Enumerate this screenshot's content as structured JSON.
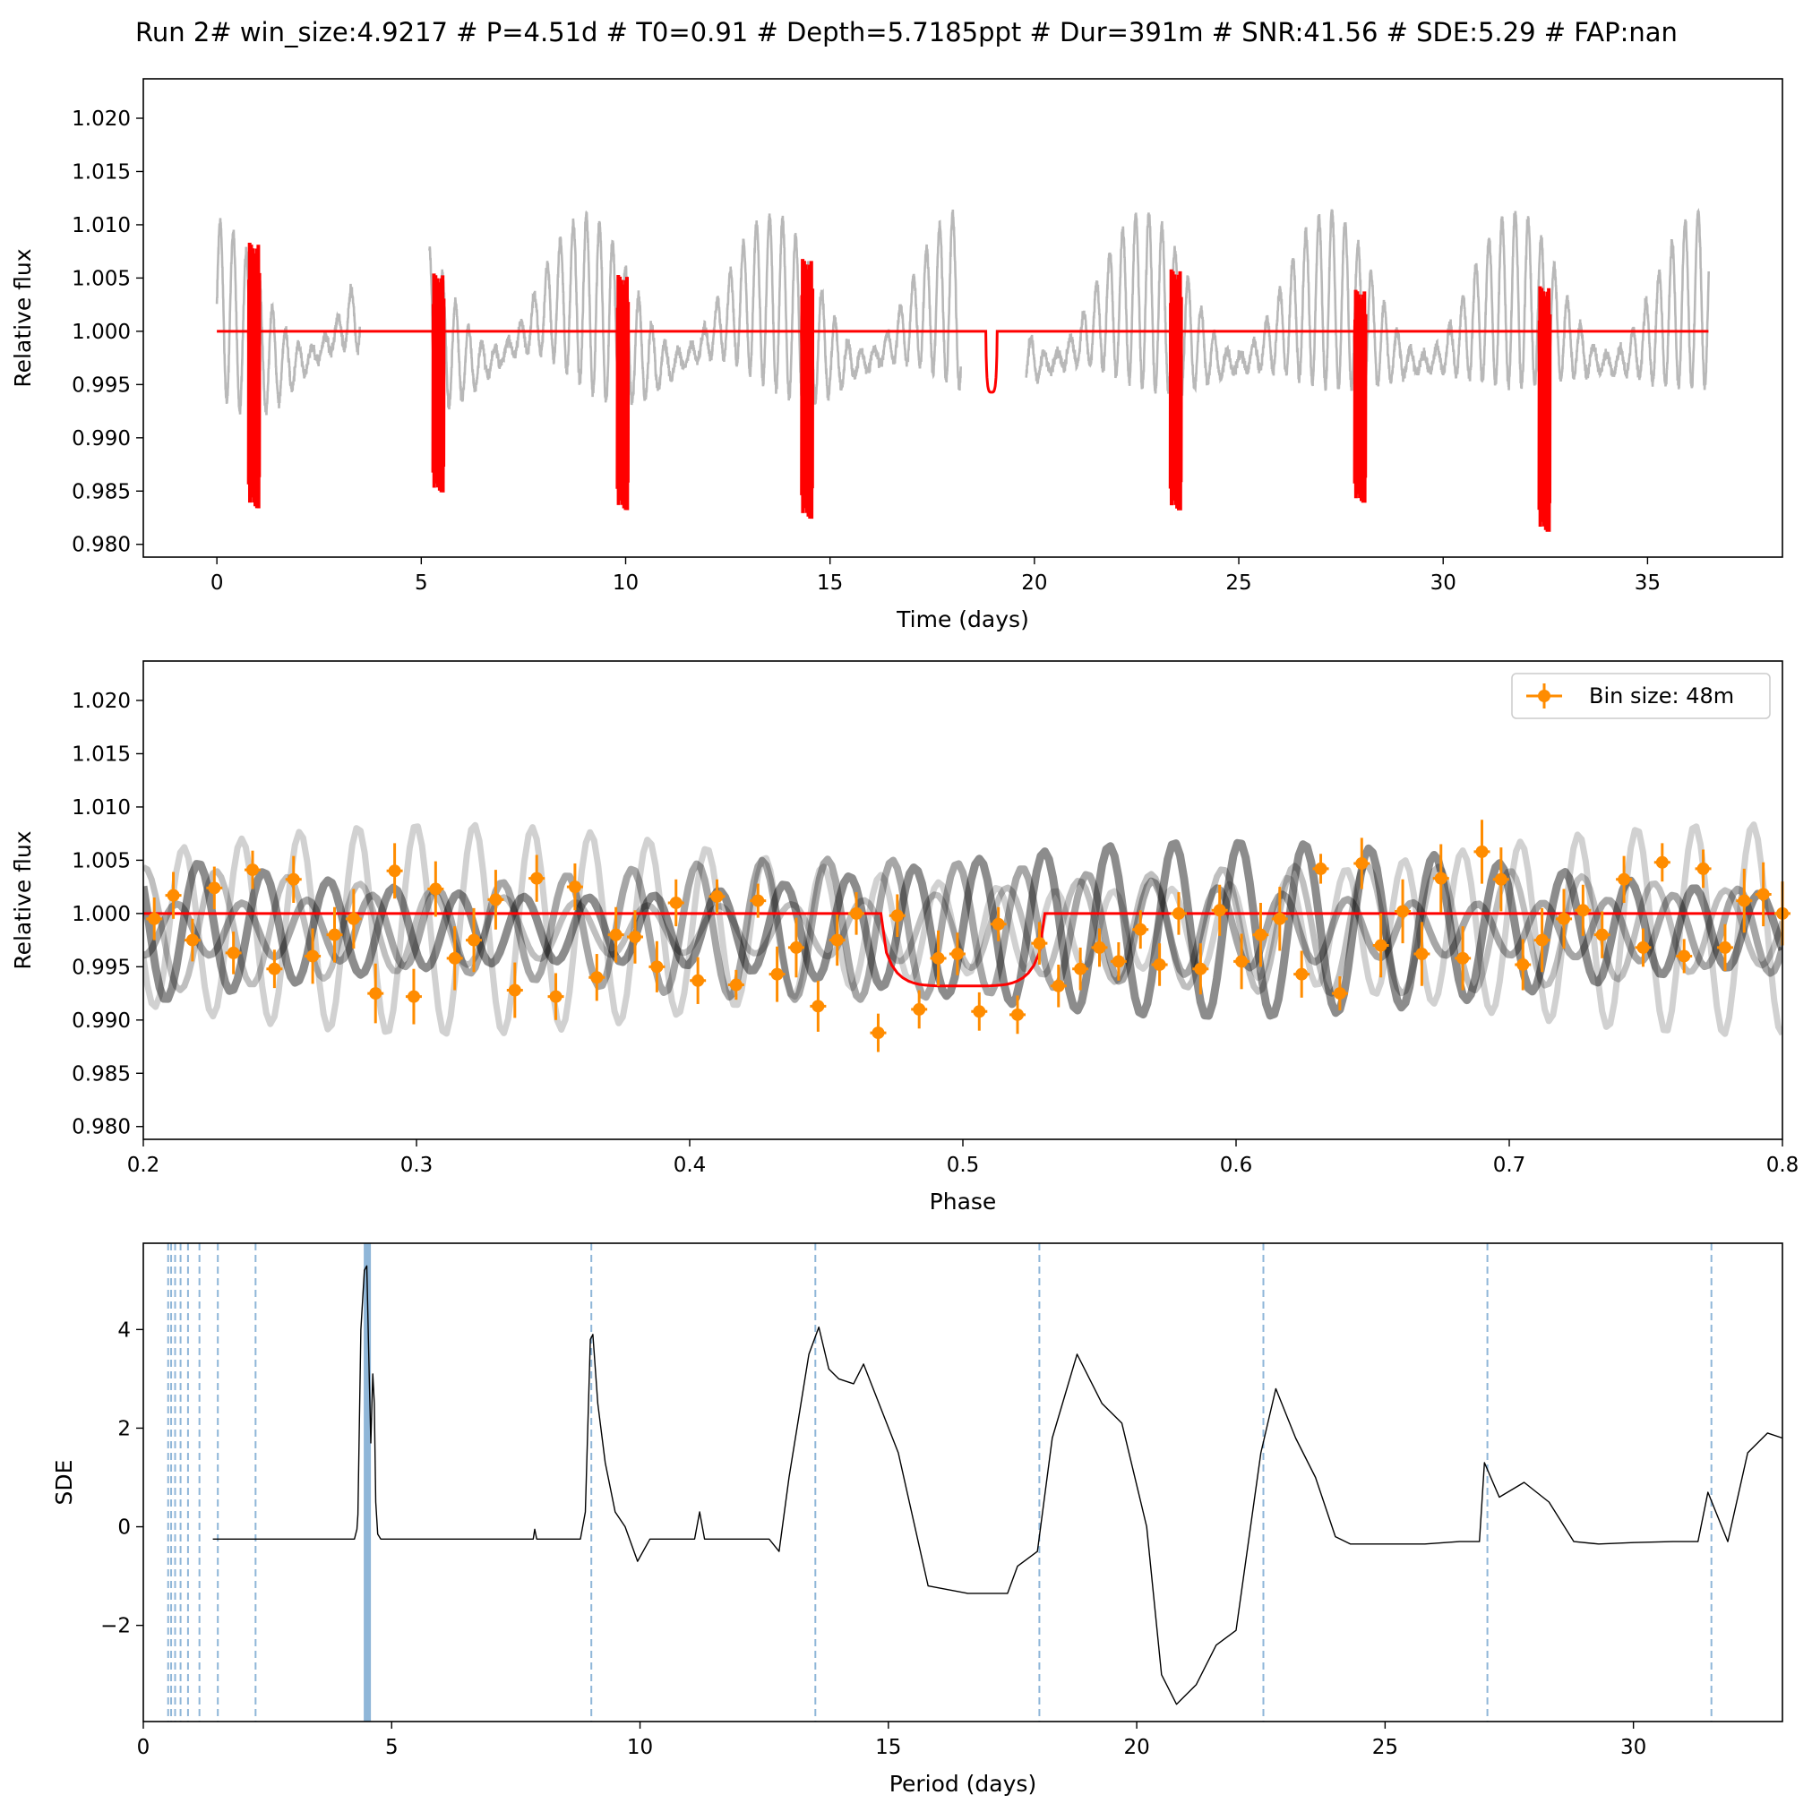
{
  "figure": {
    "title": "Run 2# win_size:4.9217 # P=4.51d # T0=0.91 # Depth=5.7185ppt # Dur=391m # SNR:41.56 # SDE:5.29 # FAP:nan"
  },
  "colors": {
    "data_points": "#000000",
    "model": "#ff0000",
    "binned": "#ff8c00",
    "period_line": "#8fb6d8",
    "periodogram": "#000000"
  },
  "chart_data": [
    {
      "type": "scatter",
      "panel": "lightcurve",
      "xlabel": "Time (days)",
      "ylabel": "Relative flux",
      "xlim": [
        -1.8,
        38.3
      ],
      "ylim": [
        0.9788,
        1.0237
      ],
      "xticks": [
        0,
        5,
        10,
        15,
        20,
        25,
        30,
        35
      ],
      "xtick_labels": [
        "0",
        "5",
        "10",
        "15",
        "20",
        "25",
        "30",
        "35"
      ],
      "yticks": [
        0.98,
        0.985,
        0.99,
        0.995,
        1.0,
        1.005,
        1.01,
        1.015,
        1.02
      ],
      "ytick_labels": [
        "0.980",
        "0.985",
        "0.990",
        "0.995",
        "1.000",
        "1.005",
        "1.010",
        "1.015",
        "1.020"
      ],
      "segments": [
        [
          0,
          3.5
        ],
        [
          5.2,
          18.2
        ],
        [
          19.8,
          36.5
        ]
      ],
      "variability": {
        "period_days": 0.32,
        "amplitude": 0.0082,
        "envelope_period_days": 4.5,
        "mean_flux": 1.0
      },
      "series": [
        {
          "name": "model",
          "x_range": [
            0,
            36.5
          ],
          "baseline": 1.0,
          "period": 4.51,
          "t0": 0.91,
          "depth_ppt": 5.7185,
          "duration_min": 391
        },
        {
          "name": "in-transit points",
          "x": [
            0.91,
            5.42,
            9.93,
            14.44,
            23.46,
            27.97,
            32.48
          ],
          "min_flux": [
            0.9845,
            0.9858,
            0.9842,
            0.9835,
            0.9842,
            0.9848,
            0.9822
          ],
          "max_flux": [
            1.0072,
            1.0045,
            1.0043,
            1.0057,
            1.0048,
            1.003,
            1.0032
          ]
        }
      ]
    },
    {
      "type": "scatter",
      "panel": "phase",
      "xlabel": "Phase",
      "ylabel": "Relative flux",
      "xlim": [
        0.2,
        0.8
      ],
      "ylim": [
        0.9788,
        1.0237
      ],
      "xticks": [
        0.2,
        0.3,
        0.4,
        0.5,
        0.6,
        0.7,
        0.8
      ],
      "xtick_labels": [
        "0.2",
        "0.3",
        "0.4",
        "0.5",
        "0.6",
        "0.7",
        "0.8"
      ],
      "yticks": [
        0.98,
        0.985,
        0.99,
        0.995,
        1.0,
        1.005,
        1.01,
        1.015,
        1.02
      ],
      "ytick_labels": [
        "0.980",
        "0.985",
        "0.990",
        "0.995",
        "1.000",
        "1.005",
        "1.010",
        "1.015",
        "1.020"
      ],
      "legend": {
        "label": "Bin size: 48m",
        "position": "top-right"
      },
      "model": {
        "baseline": 1.0,
        "ingress": 0.47,
        "egress": 0.53,
        "depth": 0.9932
      },
      "binned": {
        "x": [
          0.204,
          0.211,
          0.218,
          0.226,
          0.233,
          0.24,
          0.248,
          0.255,
          0.262,
          0.27,
          0.277,
          0.285,
          0.292,
          0.299,
          0.307,
          0.314,
          0.321,
          0.329,
          0.336,
          0.344,
          0.351,
          0.358,
          0.366,
          0.373,
          0.38,
          0.388,
          0.395,
          0.403,
          0.41,
          0.417,
          0.425,
          0.432,
          0.439,
          0.447,
          0.454,
          0.461,
          0.469,
          0.476,
          0.484,
          0.491,
          0.498,
          0.506,
          0.513,
          0.52,
          0.528,
          0.535,
          0.543,
          0.55,
          0.557,
          0.565,
          0.572,
          0.579,
          0.587,
          0.594,
          0.602,
          0.609,
          0.616,
          0.624,
          0.631,
          0.638,
          0.646,
          0.653,
          0.661,
          0.668,
          0.675,
          0.683,
          0.69,
          0.697,
          0.705,
          0.712,
          0.72,
          0.727,
          0.734,
          0.742,
          0.749,
          0.756,
          0.764,
          0.771,
          0.779,
          0.786,
          0.793,
          0.8
        ],
        "y": [
          0.9995,
          1.0017,
          0.9975,
          1.0024,
          0.9963,
          1.0041,
          0.9948,
          1.0032,
          0.996,
          0.998,
          0.9995,
          0.9925,
          1.004,
          0.9922,
          1.0023,
          0.9958,
          0.9975,
          1.0013,
          0.9928,
          1.0033,
          0.9922,
          1.0025,
          0.994,
          0.998,
          0.9978,
          0.995,
          1.001,
          0.9937,
          1.0016,
          0.9933,
          1.0012,
          0.9943,
          0.9968,
          0.9913,
          0.9975,
          1.0,
          0.9888,
          0.9998,
          0.991,
          0.9958,
          0.9962,
          0.9908,
          0.999,
          0.9905,
          0.9972,
          0.9932,
          0.9948,
          0.9968,
          0.9955,
          0.9985,
          0.9952,
          1.0,
          0.9948,
          1.0003,
          0.9955,
          0.998,
          0.9995,
          0.9943,
          1.0042,
          0.9925,
          1.0047,
          0.997,
          1.0002,
          0.9962,
          1.0033,
          0.9958,
          1.0058,
          1.0032,
          0.9952,
          0.9975,
          0.9995,
          1.0003,
          0.998,
          1.0032,
          0.9968,
          1.0048,
          0.996,
          1.0042,
          0.9968,
          1.0012,
          1.0018,
          1.0
        ],
        "yerr": [
          0.002,
          0.0022,
          0.002,
          0.002,
          0.002,
          0.0018,
          0.0018,
          0.0022,
          0.0026,
          0.0026,
          0.0028,
          0.0028,
          0.0026,
          0.0026,
          0.0026,
          0.003,
          0.003,
          0.0028,
          0.0026,
          0.0022,
          0.0022,
          0.0022,
          0.0022,
          0.0026,
          0.0025,
          0.0024,
          0.0022,
          0.0022,
          0.0016,
          0.0014,
          0.0016,
          0.0026,
          0.0028,
          0.0024,
          0.0024,
          0.002,
          0.0018,
          0.002,
          0.0018,
          0.0026,
          0.002,
          0.0018,
          0.0016,
          0.0018,
          0.002,
          0.002,
          0.002,
          0.0018,
          0.0018,
          0.0018,
          0.002,
          0.002,
          0.0024,
          0.0024,
          0.0026,
          0.003,
          0.003,
          0.0022,
          0.0014,
          0.0016,
          0.0024,
          0.003,
          0.003,
          0.003,
          0.0032,
          0.003,
          0.003,
          0.003,
          0.0024,
          0.003,
          0.0028,
          0.0024,
          0.0022,
          0.0022,
          0.0018,
          0.0018,
          0.0016,
          0.0018,
          0.0022,
          0.003,
          0.003,
          0.003
        ]
      }
    },
    {
      "type": "line",
      "panel": "periodogram",
      "xlabel": "Period (days)",
      "ylabel": "SDE",
      "xlim": [
        0,
        33
      ],
      "ylim": [
        -3.95,
        5.75
      ],
      "xticks": [
        0,
        5,
        10,
        15,
        20,
        25,
        30
      ],
      "xtick_labels": [
        "0",
        "5",
        "10",
        "15",
        "20",
        "25",
        "30"
      ],
      "yticks": [
        -2,
        0,
        2,
        4
      ],
      "ytick_labels": [
        "−2",
        "0",
        "2",
        "4"
      ],
      "best_period": 4.51,
      "harmonic_lines": [
        0.5,
        0.56,
        0.64,
        0.75,
        0.9,
        1.13,
        1.5,
        2.26,
        9.02,
        13.53,
        18.04,
        22.55,
        27.06,
        31.57
      ],
      "x": [
        1.4,
        4.25,
        4.3,
        4.32,
        4.38,
        4.45,
        4.5,
        4.55,
        4.58,
        4.62,
        4.65,
        4.68,
        4.72,
        4.78,
        4.85,
        4.95,
        5.1,
        7.85,
        7.88,
        7.92,
        8.8,
        8.9,
        9.0,
        9.05,
        9.15,
        9.3,
        9.5,
        9.7,
        9.95,
        10.2,
        10.6,
        11.1,
        11.2,
        11.3,
        12.6,
        12.8,
        13.0,
        13.4,
        13.6,
        13.8,
        14.0,
        14.3,
        14.5,
        15.2,
        15.8,
        16.6,
        16.9,
        17.4,
        17.6,
        18.0,
        18.3,
        18.8,
        19.3,
        19.7,
        20.2,
        20.5,
        20.8,
        21.2,
        21.6,
        22.0,
        22.5,
        22.8,
        23.2,
        23.6,
        24.0,
        24.3,
        25.0,
        25.8,
        26.5,
        26.9,
        27.0,
        27.3,
        27.8,
        28.3,
        28.8,
        29.3,
        30.0,
        30.8,
        31.3,
        31.5,
        31.9,
        32.3,
        32.7,
        33.0
      ],
      "y": [
        -0.25,
        -0.25,
        -0.05,
        0.25,
        4.0,
        5.2,
        5.29,
        3.0,
        1.7,
        3.1,
        2.5,
        0.5,
        -0.15,
        -0.25,
        -0.25,
        -0.25,
        -0.25,
        -0.25,
        -0.05,
        -0.25,
        -0.25,
        0.3,
        3.8,
        3.9,
        2.5,
        1.3,
        0.3,
        0.0,
        -0.7,
        -0.25,
        -0.25,
        -0.25,
        0.3,
        -0.25,
        -0.25,
        -0.5,
        1.0,
        3.5,
        4.05,
        3.2,
        3.0,
        2.9,
        3.3,
        1.5,
        -1.2,
        -1.35,
        -1.35,
        -1.35,
        -0.8,
        -0.5,
        1.8,
        3.5,
        2.5,
        2.1,
        0.0,
        -3.0,
        -3.6,
        -3.2,
        -2.4,
        -2.1,
        1.5,
        2.8,
        1.8,
        1.0,
        -0.2,
        -0.35,
        -0.35,
        -0.35,
        -0.3,
        -0.3,
        1.3,
        0.6,
        0.9,
        0.5,
        -0.3,
        -0.35,
        -0.32,
        -0.3,
        -0.3,
        0.7,
        -0.3,
        1.5,
        1.9,
        1.8
      ]
    }
  ]
}
